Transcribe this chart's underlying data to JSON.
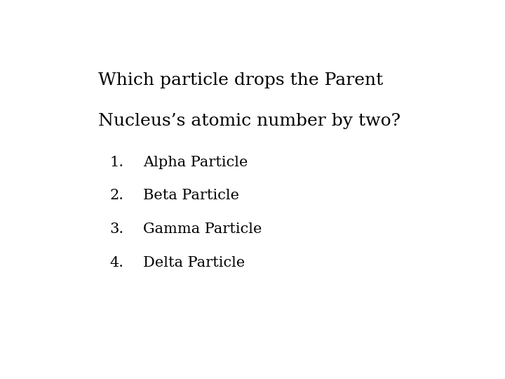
{
  "title_line1": "Which particle drops the Parent",
  "title_line2": "Nucleus’s atomic number by two?",
  "options": [
    "Alpha Particle",
    "Beta Particle",
    "Gamma Particle",
    "Delta Particle"
  ],
  "background_color": "#ffffff",
  "text_color": "#000000",
  "title_fontsize": 18,
  "option_fontsize": 15,
  "font_family": "DejaVu Serif"
}
